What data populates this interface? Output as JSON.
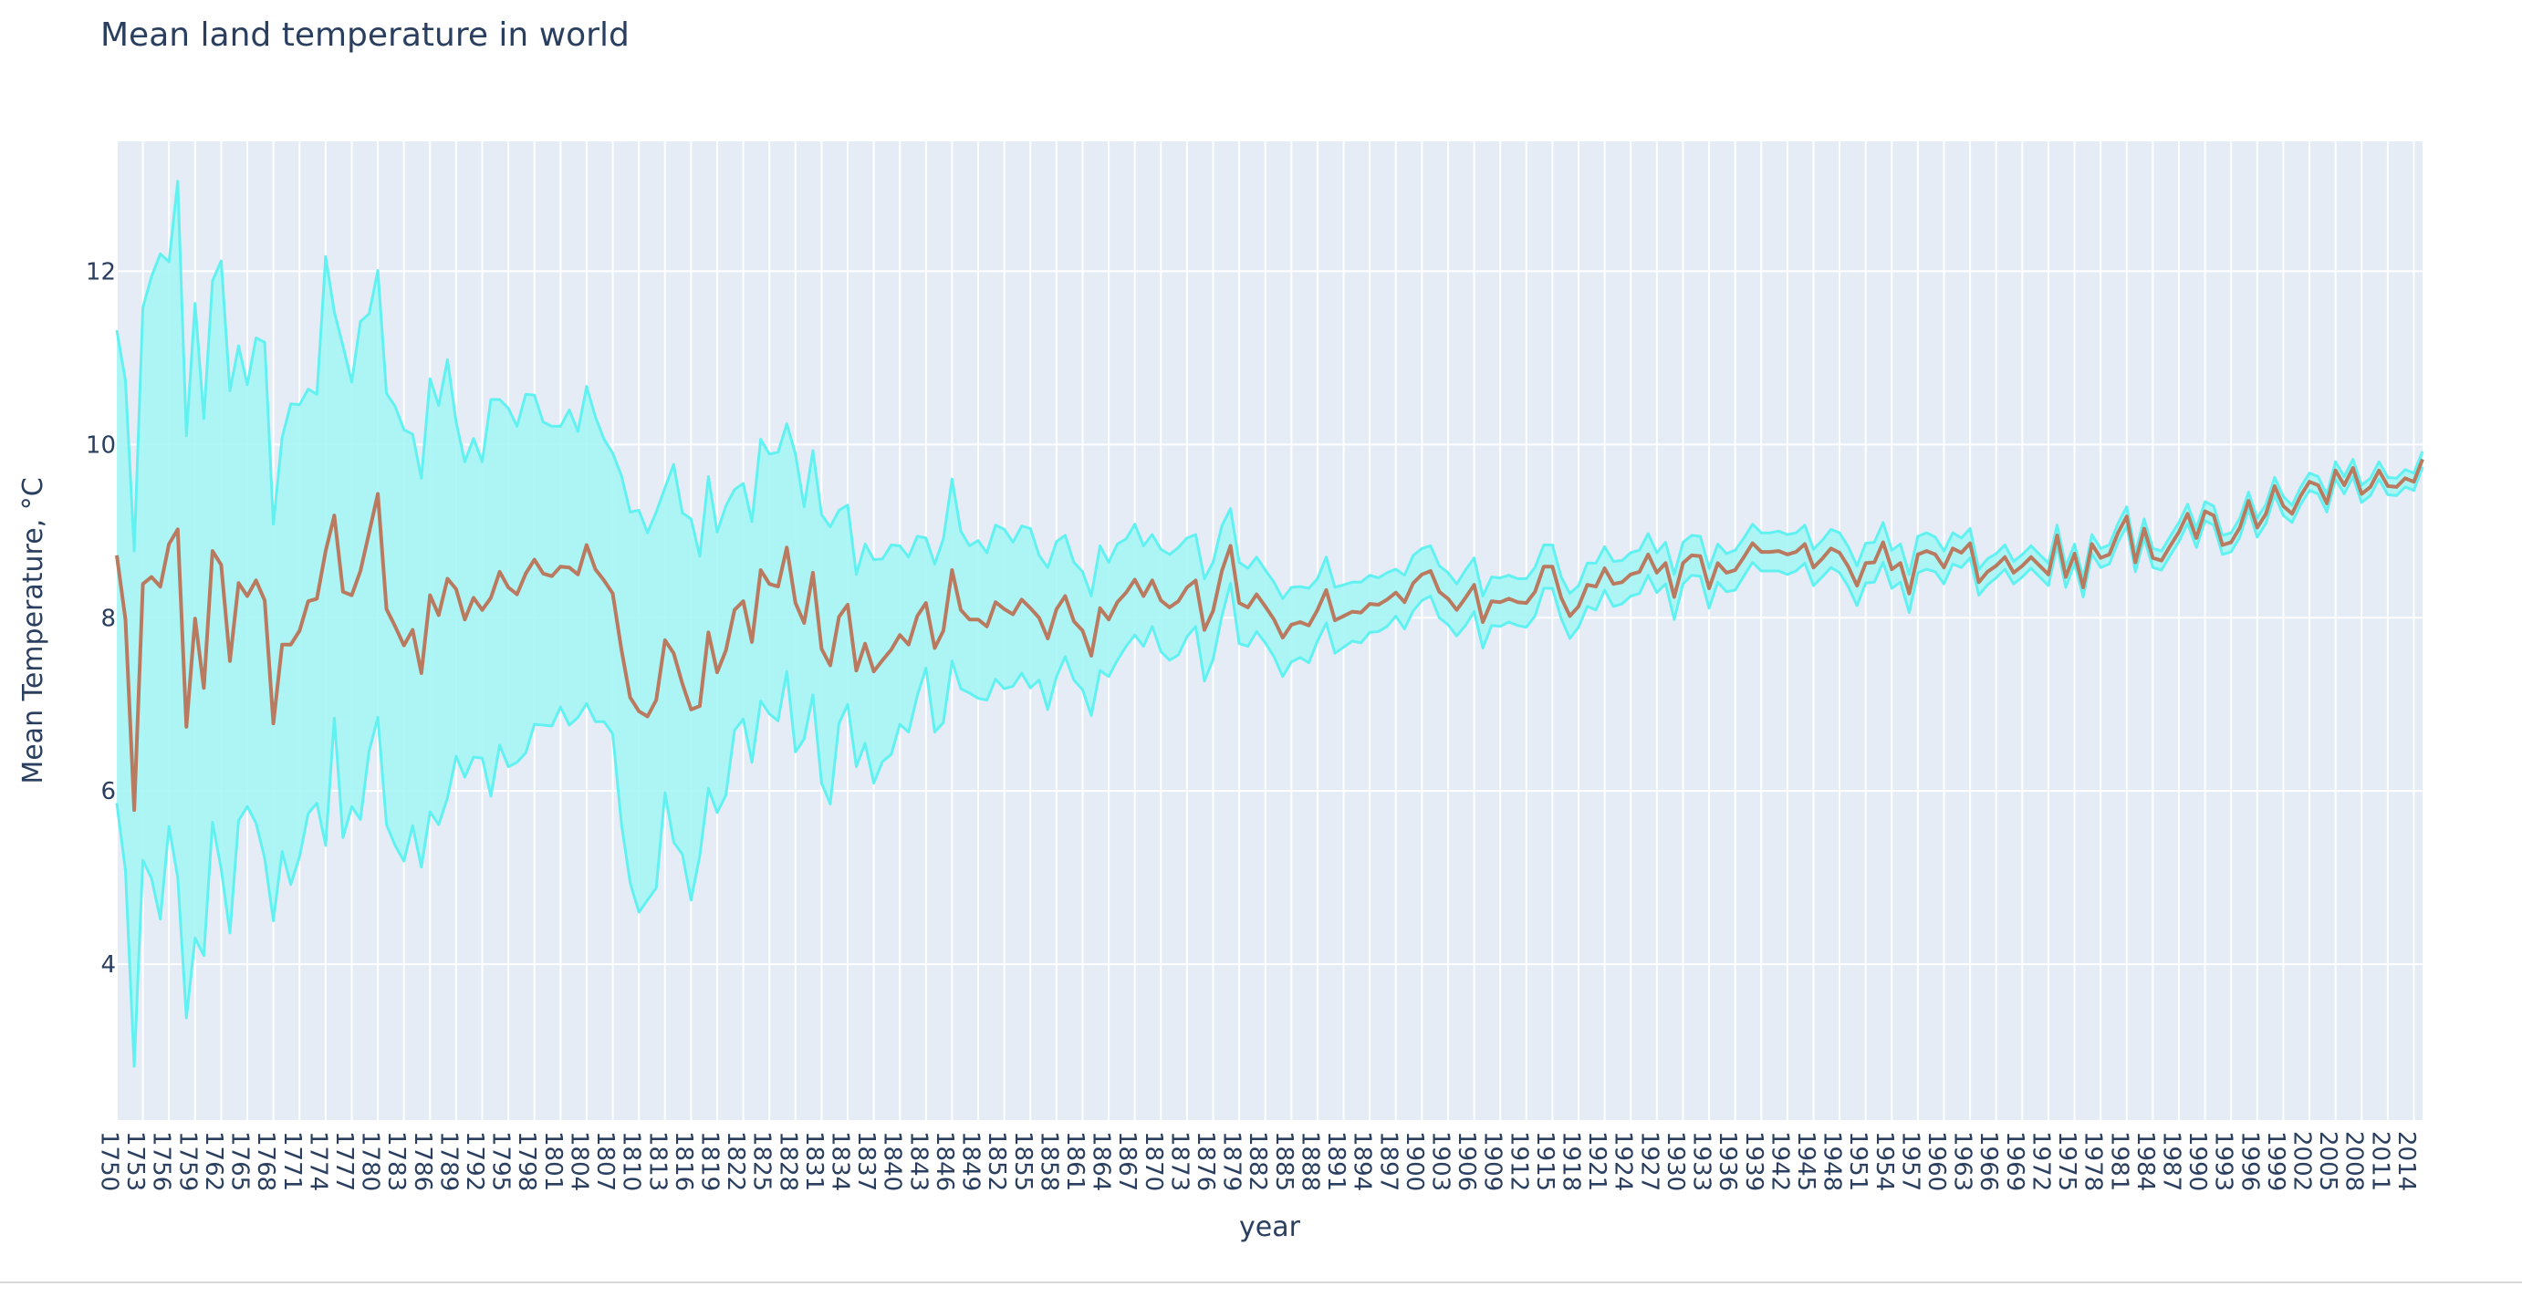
{
  "chart_data": {
    "type": "line",
    "title": "Mean land temperature in world",
    "xlabel": "year",
    "ylabel": "Mean Temperature, °C",
    "xlim": [
      1750,
      2015
    ],
    "ylim": [
      2.2,
      13.5
    ],
    "x_tick_start": 1750,
    "x_tick_end": 2014,
    "x_tick_step": 3,
    "y_ticks": [
      4,
      6,
      8,
      10,
      12
    ],
    "grid": true,
    "colors": {
      "line": "#b97a5f",
      "band_fill": "#a6f5f5",
      "band_edge": "#62f1f1",
      "plot_bg": "#e5ecf6",
      "grid": "#ffffff",
      "text": "#2a3f5f"
    },
    "series": [
      {
        "role": "mean",
        "years": [
          1750,
          1751,
          1752,
          1753,
          1754,
          1755,
          1756,
          1757,
          1758,
          1759,
          1760,
          1761,
          1762,
          1763,
          1764,
          1765,
          1766,
          1767,
          1768,
          1769,
          1770,
          1771,
          1772,
          1773,
          1774,
          1775,
          1776,
          1777,
          1778,
          1779,
          1780,
          1781,
          1782,
          1783,
          1784,
          1785,
          1786,
          1787,
          1788,
          1789,
          1790,
          1791,
          1792,
          1793,
          1794,
          1795,
          1796,
          1797,
          1798,
          1799,
          1800,
          1801,
          1802,
          1803,
          1804,
          1805,
          1806,
          1807,
          1808,
          1809,
          1810,
          1811,
          1812,
          1813,
          1814,
          1815,
          1816,
          1817,
          1818,
          1819,
          1820,
          1821,
          1822,
          1823,
          1824,
          1825,
          1826,
          1827,
          1828,
          1829,
          1830,
          1831,
          1832,
          1833,
          1834,
          1835,
          1836,
          1837,
          1838,
          1839,
          1840,
          1841,
          1842,
          1843,
          1844,
          1845,
          1846,
          1847,
          1848,
          1849,
          1850,
          1851,
          1852,
          1853,
          1854,
          1855,
          1856,
          1857,
          1858,
          1859,
          1860,
          1861,
          1862,
          1863,
          1864,
          1865,
          1866,
          1867,
          1868,
          1869,
          1870,
          1871,
          1872,
          1873,
          1874,
          1875,
          1876,
          1877,
          1878,
          1879,
          1880,
          1881,
          1882,
          1883,
          1884,
          1885,
          1886,
          1887,
          1888,
          1889,
          1890,
          1891,
          1892,
          1893,
          1894,
          1895,
          1896,
          1897,
          1898,
          1899,
          1900,
          1901,
          1902,
          1903,
          1904,
          1905,
          1906,
          1907,
          1908,
          1909,
          1910,
          1911,
          1912,
          1913,
          1914,
          1915,
          1916,
          1917,
          1918,
          1919,
          1920,
          1921,
          1922,
          1923,
          1924,
          1925,
          1926,
          1927,
          1928,
          1929,
          1930,
          1931,
          1932,
          1933,
          1934,
          1935,
          1936,
          1937,
          1938,
          1939,
          1940,
          1941,
          1942,
          1943,
          1944,
          1945,
          1946,
          1947,
          1948,
          1949,
          1950,
          1951,
          1952,
          1953,
          1954,
          1955,
          1956,
          1957,
          1958,
          1959,
          1960,
          1961,
          1962,
          1963,
          1964,
          1965,
          1966,
          1967,
          1968,
          1969,
          1970,
          1971,
          1972,
          1973,
          1974,
          1975,
          1976,
          1977,
          1978,
          1979,
          1980,
          1981,
          1982,
          1983,
          1984,
          1985,
          1986,
          1987,
          1988,
          1989,
          1990,
          1991,
          1992,
          1993,
          1994,
          1995,
          1996,
          1997,
          1998,
          1999,
          2000,
          2001,
          2002,
          2003,
          2004,
          2005,
          2006,
          2007,
          2008,
          2009,
          2010,
          2011,
          2012,
          2013,
          2014,
          2015
        ],
        "values": [
          8.72,
          7.98,
          5.78,
          8.39,
          8.47,
          8.36,
          8.85,
          9.02,
          6.74,
          7.99,
          7.19,
          8.77,
          8.61,
          7.5,
          8.4,
          8.25,
          8.43,
          8.2,
          6.78,
          7.69,
          7.69,
          7.85,
          8.19,
          8.22,
          8.77,
          9.18,
          8.3,
          8.26,
          8.54,
          8.98,
          9.43,
          8.1,
          7.9,
          7.68,
          7.86,
          7.36,
          8.26,
          8.03,
          8.45,
          8.33,
          7.98,
          8.23,
          8.09,
          8.23,
          8.53,
          8.35,
          8.27,
          8.51,
          8.67,
          8.51,
          8.48,
          8.59,
          8.58,
          8.5,
          8.84,
          8.56,
          8.43,
          8.28,
          7.63,
          7.08,
          6.92,
          6.86,
          7.05,
          7.74,
          7.59,
          7.24,
          6.94,
          6.98,
          7.83,
          7.37,
          7.62,
          8.09,
          8.19,
          7.72,
          8.55,
          8.39,
          8.36,
          8.81,
          8.17,
          7.94,
          8.52,
          7.64,
          7.45,
          8.01,
          8.15,
          7.39,
          7.7,
          7.38,
          7.51,
          7.63,
          7.8,
          7.69,
          8.02,
          8.17,
          7.65,
          7.85,
          8.55,
          8.09,
          7.98,
          7.98,
          7.9,
          8.18,
          8.1,
          8.04,
          8.21,
          8.11,
          8.0,
          7.76,
          8.1,
          8.25,
          7.96,
          7.85,
          7.56,
          8.11,
          7.98,
          8.18,
          8.29,
          8.44,
          8.25,
          8.43,
          8.2,
          8.12,
          8.19,
          8.35,
          8.43,
          7.86,
          8.08,
          8.54,
          8.83,
          8.17,
          8.12,
          8.27,
          8.13,
          7.98,
          7.77,
          7.92,
          7.95,
          7.91,
          8.09,
          8.32,
          7.97,
          8.02,
          8.07,
          8.06,
          8.16,
          8.15,
          8.21,
          8.29,
          8.18,
          8.4,
          8.5,
          8.54,
          8.3,
          8.22,
          8.09,
          8.23,
          8.38,
          7.95,
          8.19,
          8.18,
          8.22,
          8.18,
          8.17,
          8.3,
          8.59,
          8.59,
          8.23,
          8.02,
          8.13,
          8.38,
          8.36,
          8.57,
          8.39,
          8.41,
          8.5,
          8.53,
          8.73,
          8.52,
          8.63,
          8.24,
          8.63,
          8.72,
          8.71,
          8.34,
          8.63,
          8.52,
          8.55,
          8.7,
          8.86,
          8.76,
          8.76,
          8.77,
          8.73,
          8.76,
          8.85,
          8.58,
          8.68,
          8.8,
          8.75,
          8.59,
          8.37,
          8.63,
          8.64,
          8.87,
          8.56,
          8.63,
          8.28,
          8.73,
          8.77,
          8.73,
          8.58,
          8.8,
          8.75,
          8.86,
          8.41,
          8.53,
          8.6,
          8.7,
          8.52,
          8.6,
          8.7,
          8.6,
          8.5,
          8.95,
          8.47,
          8.74,
          8.35,
          8.85,
          8.69,
          8.73,
          8.98,
          9.17,
          8.64,
          9.03,
          8.69,
          8.66,
          8.83,
          8.99,
          9.2,
          8.92,
          9.23,
          9.18,
          8.84,
          8.87,
          9.04,
          9.35,
          9.04,
          9.2,
          9.52,
          9.29,
          9.2,
          9.41,
          9.57,
          9.53,
          9.32,
          9.7,
          9.53,
          9.73,
          9.43,
          9.51,
          9.7,
          9.52,
          9.51,
          9.61,
          9.57,
          9.83
        ]
      },
      {
        "role": "upper_bound",
        "values": [
          11.32,
          10.74,
          8.77,
          11.58,
          11.94,
          12.2,
          12.11,
          13.04,
          10.1,
          11.63,
          10.3,
          11.89,
          12.12,
          10.62,
          11.14,
          10.69,
          11.23,
          11.18,
          9.08,
          10.08,
          10.47,
          10.46,
          10.64,
          10.58,
          12.17,
          11.53,
          11.14,
          10.72,
          11.42,
          11.51,
          12.01,
          10.59,
          10.44,
          10.17,
          10.12,
          9.61,
          10.76,
          10.45,
          10.98,
          10.26,
          9.8,
          10.07,
          9.8,
          10.52,
          10.52,
          10.42,
          10.21,
          10.58,
          10.57,
          10.26,
          10.21,
          10.21,
          10.4,
          10.15,
          10.67,
          10.32,
          10.06,
          9.9,
          9.64,
          9.22,
          9.24,
          8.98,
          9.22,
          9.5,
          9.77,
          9.21,
          9.14,
          8.71,
          9.63,
          8.99,
          9.29,
          9.48,
          9.55,
          9.11,
          10.06,
          9.89,
          9.91,
          10.24,
          9.89,
          9.28,
          9.93,
          9.19,
          9.05,
          9.24,
          9.3,
          8.5,
          8.85,
          8.67,
          8.68,
          8.84,
          8.83,
          8.7,
          8.94,
          8.92,
          8.62,
          8.91,
          9.6,
          9.0,
          8.83,
          8.89,
          8.75,
          9.07,
          9.02,
          8.87,
          9.06,
          9.03,
          8.72,
          8.58,
          8.88,
          8.95,
          8.64,
          8.53,
          8.25,
          8.83,
          8.64,
          8.85,
          8.91,
          9.08,
          8.83,
          8.96,
          8.79,
          8.73,
          8.81,
          8.92,
          8.96,
          8.45,
          8.64,
          9.06,
          9.26,
          8.64,
          8.57,
          8.7,
          8.55,
          8.41,
          8.22,
          8.35,
          8.36,
          8.34,
          8.45,
          8.7,
          8.35,
          8.38,
          8.41,
          8.41,
          8.49,
          8.46,
          8.52,
          8.56,
          8.49,
          8.72,
          8.8,
          8.83,
          8.6,
          8.52,
          8.39,
          8.55,
          8.69,
          8.25,
          8.47,
          8.46,
          8.49,
          8.45,
          8.45,
          8.58,
          8.84,
          8.84,
          8.47,
          8.28,
          8.37,
          8.63,
          8.63,
          8.82,
          8.65,
          8.66,
          8.75,
          8.78,
          8.97,
          8.75,
          8.87,
          8.5,
          8.87,
          8.95,
          8.94,
          8.57,
          8.85,
          8.74,
          8.78,
          8.92,
          9.08,
          8.98,
          8.98,
          9.0,
          8.96,
          8.98,
          9.07,
          8.79,
          8.89,
          9.02,
          8.98,
          8.82,
          8.6,
          8.86,
          8.87,
          9.1,
          8.78,
          8.85,
          8.5,
          8.94,
          8.98,
          8.93,
          8.77,
          8.98,
          8.92,
          9.03,
          8.56,
          8.68,
          8.74,
          8.84,
          8.65,
          8.73,
          8.83,
          8.73,
          8.63,
          9.07,
          8.59,
          8.85,
          8.46,
          8.96,
          8.8,
          8.84,
          9.09,
          9.28,
          8.75,
          9.14,
          8.8,
          8.77,
          8.94,
          9.1,
          9.31,
          9.03,
          9.34,
          9.29,
          8.95,
          8.98,
          9.15,
          9.45,
          9.15,
          9.31,
          9.62,
          9.4,
          9.3,
          9.51,
          9.67,
          9.63,
          9.42,
          9.8,
          9.63,
          9.83,
          9.53,
          9.61,
          9.8,
          9.62,
          9.61,
          9.71,
          9.67,
          9.92
        ]
      },
      {
        "role": "lower_bound",
        "values": [
          5.86,
          5.08,
          2.82,
          5.2,
          4.99,
          4.52,
          5.59,
          5.0,
          3.38,
          4.3,
          4.1,
          5.64,
          5.1,
          4.36,
          5.66,
          5.82,
          5.63,
          5.22,
          4.5,
          5.3,
          4.92,
          5.24,
          5.74,
          5.86,
          5.37,
          6.84,
          5.46,
          5.82,
          5.67,
          6.46,
          6.85,
          5.61,
          5.37,
          5.19,
          5.6,
          5.12,
          5.76,
          5.61,
          5.92,
          6.4,
          6.16,
          6.39,
          6.38,
          5.94,
          6.53,
          6.28,
          6.33,
          6.44,
          6.77,
          6.76,
          6.75,
          6.97,
          6.76,
          6.85,
          7.01,
          6.8,
          6.8,
          6.66,
          5.62,
          4.94,
          4.6,
          4.74,
          4.88,
          5.98,
          5.41,
          5.27,
          4.74,
          5.25,
          6.03,
          5.75,
          5.95,
          6.7,
          6.83,
          6.33,
          7.04,
          6.89,
          6.81,
          7.38,
          6.45,
          6.6,
          7.11,
          6.09,
          5.85,
          6.78,
          7.0,
          6.28,
          6.55,
          6.09,
          6.34,
          6.42,
          6.77,
          6.68,
          7.1,
          7.42,
          6.68,
          6.79,
          7.5,
          7.18,
          7.13,
          7.07,
          7.05,
          7.29,
          7.18,
          7.21,
          7.36,
          7.19,
          7.28,
          6.94,
          7.32,
          7.55,
          7.28,
          7.17,
          6.87,
          7.39,
          7.32,
          7.51,
          7.67,
          7.8,
          7.67,
          7.9,
          7.61,
          7.51,
          7.57,
          7.78,
          7.9,
          7.27,
          7.52,
          8.02,
          8.4,
          7.7,
          7.67,
          7.84,
          7.71,
          7.55,
          7.32,
          7.49,
          7.54,
          7.48,
          7.73,
          7.94,
          7.59,
          7.66,
          7.73,
          7.71,
          7.83,
          7.84,
          7.9,
          8.02,
          7.87,
          8.08,
          8.2,
          8.25,
          8.0,
          7.92,
          7.79,
          7.91,
          8.07,
          7.65,
          7.91,
          7.9,
          7.95,
          7.91,
          7.89,
          8.02,
          8.34,
          8.34,
          7.99,
          7.76,
          7.89,
          8.13,
          8.09,
          8.32,
          8.13,
          8.16,
          8.25,
          8.28,
          8.49,
          8.29,
          8.39,
          7.98,
          8.39,
          8.49,
          8.48,
          8.11,
          8.41,
          8.3,
          8.32,
          8.48,
          8.64,
          8.54,
          8.54,
          8.54,
          8.5,
          8.54,
          8.63,
          8.37,
          8.47,
          8.58,
          8.52,
          8.36,
          8.14,
          8.4,
          8.41,
          8.64,
          8.34,
          8.41,
          8.06,
          8.52,
          8.56,
          8.53,
          8.39,
          8.62,
          8.58,
          8.69,
          8.26,
          8.38,
          8.46,
          8.56,
          8.39,
          8.47,
          8.57,
          8.47,
          8.37,
          8.83,
          8.35,
          8.63,
          8.24,
          8.74,
          8.58,
          8.62,
          8.87,
          9.06,
          8.53,
          8.92,
          8.58,
          8.55,
          8.72,
          8.88,
          9.09,
          8.81,
          9.12,
          9.07,
          8.73,
          8.76,
          8.93,
          9.25,
          8.93,
          9.09,
          9.42,
          9.18,
          9.1,
          9.31,
          9.47,
          9.43,
          9.22,
          9.6,
          9.43,
          9.63,
          9.33,
          9.41,
          9.6,
          9.42,
          9.41,
          9.51,
          9.47,
          9.74
        ]
      }
    ]
  }
}
